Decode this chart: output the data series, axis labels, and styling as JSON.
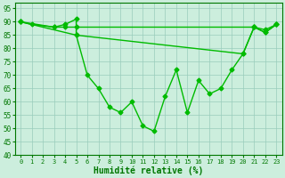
{
  "line1_x": [
    0,
    1,
    3,
    4,
    5,
    5,
    6,
    7,
    8,
    9,
    10,
    11,
    12,
    13,
    14,
    15,
    16,
    17,
    18,
    19,
    20,
    21,
    22,
    23
  ],
  "line1_y": [
    90,
    89,
    88,
    89,
    91,
    85,
    70,
    65,
    58,
    56,
    60,
    51,
    49,
    62,
    72,
    56,
    68,
    63,
    65,
    72,
    78,
    88,
    86,
    89
  ],
  "line2_x": [
    0,
    3,
    4,
    5,
    21,
    22,
    23
  ],
  "line2_y": [
    90,
    88,
    88,
    88,
    88,
    87,
    89
  ],
  "line3_x": [
    0,
    5,
    20,
    21,
    22,
    23
  ],
  "line3_y": [
    90,
    85,
    78,
    88,
    86,
    89
  ],
  "line_color": "#00bb00",
  "bg_color": "#cceedd",
  "grid_color": "#99ccbb",
  "xlabel": "Humidité relative (%)",
  "xlim": [
    -0.5,
    23.5
  ],
  "ylim": [
    40,
    97
  ],
  "yticks": [
    40,
    45,
    50,
    55,
    60,
    65,
    70,
    75,
    80,
    85,
    90,
    95
  ],
  "xticks": [
    0,
    1,
    2,
    3,
    4,
    5,
    6,
    7,
    8,
    9,
    10,
    11,
    12,
    13,
    14,
    15,
    16,
    17,
    18,
    19,
    20,
    21,
    22,
    23
  ],
  "markersize": 2.5,
  "linewidth": 1.0,
  "xlabel_fontsize": 7,
  "tick_fontsize": 5.5
}
